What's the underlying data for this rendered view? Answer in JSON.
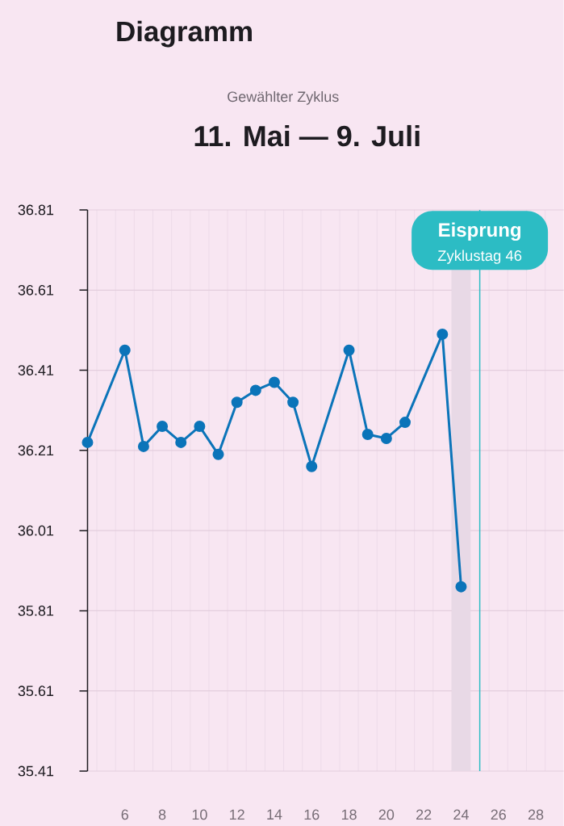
{
  "chart_data": {
    "type": "line",
    "title": "Diagramm",
    "subtitle": "Gewählter Zyklus",
    "x": [
      4,
      6,
      7,
      8,
      9,
      10,
      11,
      12,
      13,
      14,
      15,
      16,
      18,
      19,
      20,
      21,
      23,
      24
    ],
    "values": [
      36.23,
      36.46,
      36.22,
      36.27,
      36.23,
      36.27,
      36.2,
      36.33,
      36.36,
      36.38,
      36.33,
      36.17,
      36.46,
      36.25,
      36.24,
      36.28,
      36.5,
      35.87
    ],
    "color": "#0b74b9",
    "marker": "circle",
    "line_style": "solid",
    "xlim": [
      4,
      29.5
    ],
    "xticks": [
      {
        "value": 4.5,
        "label": null
      },
      {
        "value": 5.5,
        "label": null
      },
      6,
      {
        "value": 6.5,
        "label": null
      },
      {
        "value": 7.5,
        "label": null
      },
      8,
      {
        "value": 8.5,
        "label": null
      },
      {
        "value": 9.5,
        "label": null
      },
      10,
      {
        "value": 10.5,
        "label": null
      },
      {
        "value": 11.5,
        "label": null
      },
      12,
      {
        "value": 12.5,
        "label": null
      },
      {
        "value": 13.5,
        "label": null
      },
      14,
      {
        "value": 14.5,
        "label": null
      },
      {
        "value": 15.5,
        "label": null
      },
      16,
      {
        "value": 16.5,
        "label": null
      },
      {
        "value": 17.5,
        "label": null
      },
      18,
      {
        "value": 18.5,
        "label": null
      },
      {
        "value": 19.5,
        "label": null
      },
      20,
      {
        "value": 20.5,
        "label": null
      },
      {
        "value": 21.5,
        "label": null
      },
      22,
      {
        "value": 22.5,
        "label": null
      },
      {
        "value": 23.5,
        "label": null
      },
      24,
      {
        "value": 24.5,
        "label": null
      },
      {
        "value": 25.5,
        "label": null
      },
      26,
      {
        "value": 26.5,
        "label": null
      },
      {
        "value": 27.5,
        "label": null
      },
      28,
      {
        "value": 28.5,
        "label": null
      }
    ],
    "ylim": [
      35.41,
      36.81
    ],
    "yticks": [
      35.41,
      35.61,
      35.81,
      36.01,
      36.21,
      36.41,
      36.61,
      36.81
    ],
    "grid": true,
    "ref_lines": [
      {
        "axis": "x",
        "value": 25,
        "label": "Eisprung",
        "color": "#2cbcc4"
      }
    ],
    "bands": [
      {
        "axis": "x",
        "from": 23.5,
        "to": 24.5,
        "color": "#e8d9e6"
      }
    ],
    "annotations": [
      "11. Mai — 9. Juli",
      {
        "text": "Zyklustag 46",
        "x": 25
      }
    ]
  }
}
